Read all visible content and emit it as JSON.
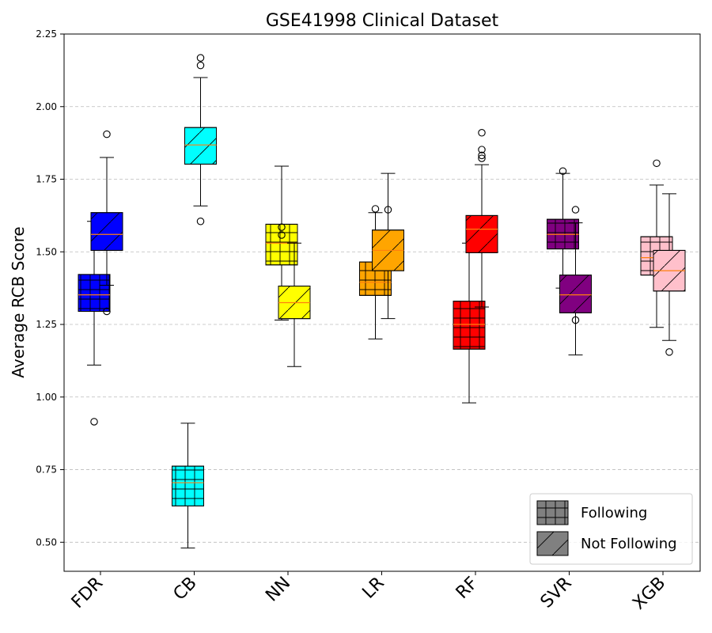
{
  "chart_data": {
    "type": "box",
    "title": "GSE41998 Clinical Dataset",
    "xlabel": "",
    "ylabel": "Average RCB Score",
    "ylim": [
      0.4,
      2.25
    ],
    "yticks": [
      "0.50",
      "0.75",
      "1.00",
      "1.25",
      "1.50",
      "1.75",
      "2.00",
      "2.25"
    ],
    "grid": "y-dashed",
    "categories": [
      "FDR",
      "CB",
      "NN",
      "LR",
      "RF",
      "SVR",
      "XGB"
    ],
    "category_colors": [
      "#0000ff",
      "#00ffff",
      "#ffff00",
      "#ffa500",
      "#ff0000",
      "#800080",
      "#ffc0cb"
    ],
    "median_color": "#ff7f0e",
    "legend": {
      "position": "bottom-right",
      "entries": [
        {
          "label": "Following",
          "hatch": "grid",
          "color": "#808080"
        },
        {
          "label": "Not Following",
          "hatch": "diagonal",
          "color": "#808080"
        }
      ]
    },
    "series": [
      {
        "name": "Following",
        "hatch": "grid",
        "boxes": [
          {
            "category": "FDR",
            "whislo": 1.11,
            "q1": 1.295,
            "med": 1.352,
            "q3": 1.422,
            "whishi": 1.605,
            "fliers": [
              0.915
            ]
          },
          {
            "category": "CB",
            "whislo": 0.48,
            "q1": 0.625,
            "med": 0.705,
            "q3": 0.762,
            "whishi": 0.91,
            "fliers": []
          },
          {
            "category": "NN",
            "whislo": 1.265,
            "q1": 1.455,
            "med": 1.53,
            "q3": 1.595,
            "whishi": 1.795,
            "fliers": [
              1.585,
              1.558
            ]
          },
          {
            "category": "LR",
            "whislo": 1.2,
            "q1": 1.35,
            "med": 1.395,
            "q3": 1.465,
            "whishi": 1.635,
            "fliers": [
              1.648
            ]
          },
          {
            "category": "RF",
            "whislo": 0.98,
            "q1": 1.165,
            "med": 1.25,
            "q3": 1.33,
            "whishi": 1.53,
            "fliers": []
          },
          {
            "category": "SVR",
            "whislo": 1.375,
            "q1": 1.51,
            "med": 1.56,
            "q3": 1.612,
            "whishi": 1.77,
            "fliers": [
              1.778
            ]
          },
          {
            "category": "XGB",
            "whislo": 1.24,
            "q1": 1.42,
            "med": 1.48,
            "q3": 1.552,
            "whishi": 1.73,
            "fliers": [
              1.805
            ]
          }
        ]
      },
      {
        "name": "Not Following",
        "hatch": "diagonal",
        "boxes": [
          {
            "category": "FDR",
            "whislo": 1.385,
            "q1": 1.505,
            "med": 1.56,
            "q3": 1.635,
            "whishi": 1.825,
            "fliers": [
              1.905,
              1.295
            ]
          },
          {
            "category": "CB",
            "whislo": 1.658,
            "q1": 1.802,
            "med": 1.868,
            "q3": 1.928,
            "whishi": 2.1,
            "fliers": [
              2.168,
              2.142,
              1.605
            ]
          },
          {
            "category": "NN",
            "whislo": 1.105,
            "q1": 1.27,
            "med": 1.325,
            "q3": 1.382,
            "whishi": 1.53,
            "fliers": []
          },
          {
            "category": "LR",
            "whislo": 1.27,
            "q1": 1.435,
            "med": 1.505,
            "q3": 1.575,
            "whishi": 1.77,
            "fliers": [
              1.645
            ]
          },
          {
            "category": "RF",
            "whislo": 1.31,
            "q1": 1.497,
            "med": 1.578,
            "q3": 1.625,
            "whishi": 1.8,
            "fliers": [
              1.91,
              1.852,
              1.832,
              1.822
            ]
          },
          {
            "category": "SVR",
            "whislo": 1.145,
            "q1": 1.29,
            "med": 1.352,
            "q3": 1.42,
            "whishi": 1.6,
            "fliers": [
              1.645,
              1.265
            ]
          },
          {
            "category": "XGB",
            "whislo": 1.195,
            "q1": 1.365,
            "med": 1.435,
            "q3": 1.505,
            "whishi": 1.7,
            "fliers": [
              1.155
            ]
          }
        ]
      }
    ]
  }
}
